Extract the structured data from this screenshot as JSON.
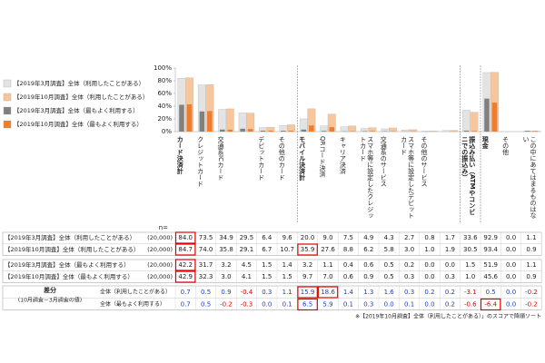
{
  "chart_data": {
    "type": "bar",
    "categories": [
      "カード決済計",
      "クレジットカード",
      "交通系ICカード",
      null,
      "デビットカード",
      "その他のカード",
      "モバイル決済計",
      "QRコード決済",
      "キャリア決済",
      "スマホ等に設定したクレジットカード",
      "交通系のサービス",
      "スマホ等に設定したデビットカード",
      "その他のサービス",
      null,
      "振込み払い（ATMやコンビニでの振込み）",
      "現金",
      "その他",
      "この中にあてはまるものはない"
    ],
    "series": [
      {
        "name": "【2019年3月調査】全体（利用したことがある）",
        "color": "#e3e3e3",
        "n": "(20,000)",
        "values": [
          84.0,
          73.5,
          34.9,
          29.5,
          6.4,
          9.6,
          20.0,
          9.0,
          7.5,
          4.9,
          4.3,
          2.7,
          0.8,
          1.7,
          33.6,
          92.9,
          0.0,
          1.1
        ],
        "value_labels": [
          "84.0",
          "73.5",
          "34.9",
          "29.5",
          "6.4",
          "9.6",
          "20.0",
          "9.0",
          "7.5",
          "4.9",
          "4.3",
          "2.7",
          "0.8",
          "1.7",
          "33.6",
          "92.9",
          "0.0",
          "1.1"
        ]
      },
      {
        "name": "【2019年10月調査】全体（利用したことがある）",
        "color": "#f7c69b",
        "n": "(20,000)",
        "values": [
          84.7,
          74.0,
          35.8,
          29.1,
          6.7,
          10.7,
          35.9,
          27.6,
          8.8,
          6.2,
          5.8,
          3.0,
          1.0,
          1.9,
          30.5,
          93.4,
          0.0,
          0.9
        ],
        "value_labels": [
          "84.7",
          "74.0",
          "35.8",
          "29.1",
          "6.7",
          "10.7",
          "35.9",
          "27.6",
          "8.8",
          "6.2",
          "5.8",
          "3.0",
          "1.0",
          "1.9",
          "30.5",
          "93.4",
          "0.0",
          "0.9"
        ]
      },
      {
        "name": "【2019年3月調査】全体（最もよく利用する）",
        "color": "#808080",
        "n": "(20,000)",
        "values": [
          42.2,
          31.7,
          3.2,
          4.5,
          1.5,
          1.4,
          3.2,
          1.1,
          0.4,
          0.6,
          0.5,
          0.2,
          0.0,
          0.0,
          1.5,
          51.9,
          0.0,
          1.1
        ],
        "value_labels": [
          "42.2",
          "31.7",
          "3.2",
          "4.5",
          "1.5",
          "1.4",
          "3.2",
          "1.1",
          "0.4",
          "0.6",
          "0.5",
          "0.2",
          "0.0",
          "0.0",
          "1.5",
          "51.9",
          "0.0",
          "1.1"
        ]
      },
      {
        "name": "【2019年10月調査】全体（最もよく利用する）",
        "color": "#ed7d31",
        "n": "(20,000)",
        "values": [
          42.9,
          32.3,
          3.0,
          4.1,
          1.5,
          1.5,
          9.7,
          7.0,
          0.6,
          0.9,
          0.5,
          0.3,
          0.0,
          0.3,
          1.0,
          45.6,
          0.0,
          0.9
        ],
        "value_labels": [
          "42.9",
          "32.3",
          "3.0",
          "4.1",
          "1.5",
          "1.5",
          "9.7",
          "7.0",
          "0.6",
          "0.9",
          "0.5",
          "0.3",
          "0.0",
          "0.3",
          "1.0",
          "45.6",
          "0.0",
          "0.9"
        ]
      }
    ],
    "ylim": [
      0,
      100
    ],
    "yticks": [
      {
        "value": 0,
        "label": "0%"
      },
      {
        "value": 20,
        "label": "20%"
      },
      {
        "value": 40,
        "label": "40%"
      },
      {
        "value": 60,
        "label": "60%"
      },
      {
        "value": 80,
        "label": "80%"
      },
      {
        "value": 100,
        "label": "100%"
      }
    ],
    "legend": "top-left",
    "n_label": "n=",
    "difference": {
      "title": "差分",
      "subtitle": "(10月調査－3月調査の値)",
      "rows": [
        {
          "name": "全体（利用したことがある）",
          "values": [
            0.7,
            0.5,
            0.9,
            -0.4,
            0.3,
            1.1,
            15.9,
            18.6,
            1.4,
            1.3,
            1.6,
            0.3,
            0.2,
            0.2,
            -3.1,
            0.5,
            0.0,
            -0.2
          ],
          "value_labels": [
            "0.7",
            "0.5",
            "0.9",
            "-0.4",
            "0.3",
            "1.1",
            "15.9",
            "18.6",
            "1.4",
            "1.3",
            "1.6",
            "0.3",
            "0.2",
            "0.2",
            "-3.1",
            "0.5",
            "0.0",
            "-0.2"
          ]
        },
        {
          "name": "全体（最もよく利用する）",
          "values": [
            0.7,
            0.5,
            -0.2,
            -0.3,
            0.0,
            0.1,
            6.5,
            5.9,
            0.1,
            0.3,
            0.0,
            0.1,
            0.0,
            0.2,
            -0.6,
            -6.4,
            0.0,
            -0.2
          ],
          "value_labels": [
            "0.7",
            "0.5",
            "-0.2",
            "-0.3",
            "0.0",
            "0.1",
            "6.5",
            "5.9",
            "0.1",
            "0.3",
            "0.0",
            "0.1",
            "0.0",
            "0.2",
            "-0.6",
            "-6.4",
            "0.0",
            "-0.2"
          ]
        }
      ]
    },
    "note": "※【2019年10月調査】全体（利用したことがある）」のスコアで降順ソート"
  }
}
